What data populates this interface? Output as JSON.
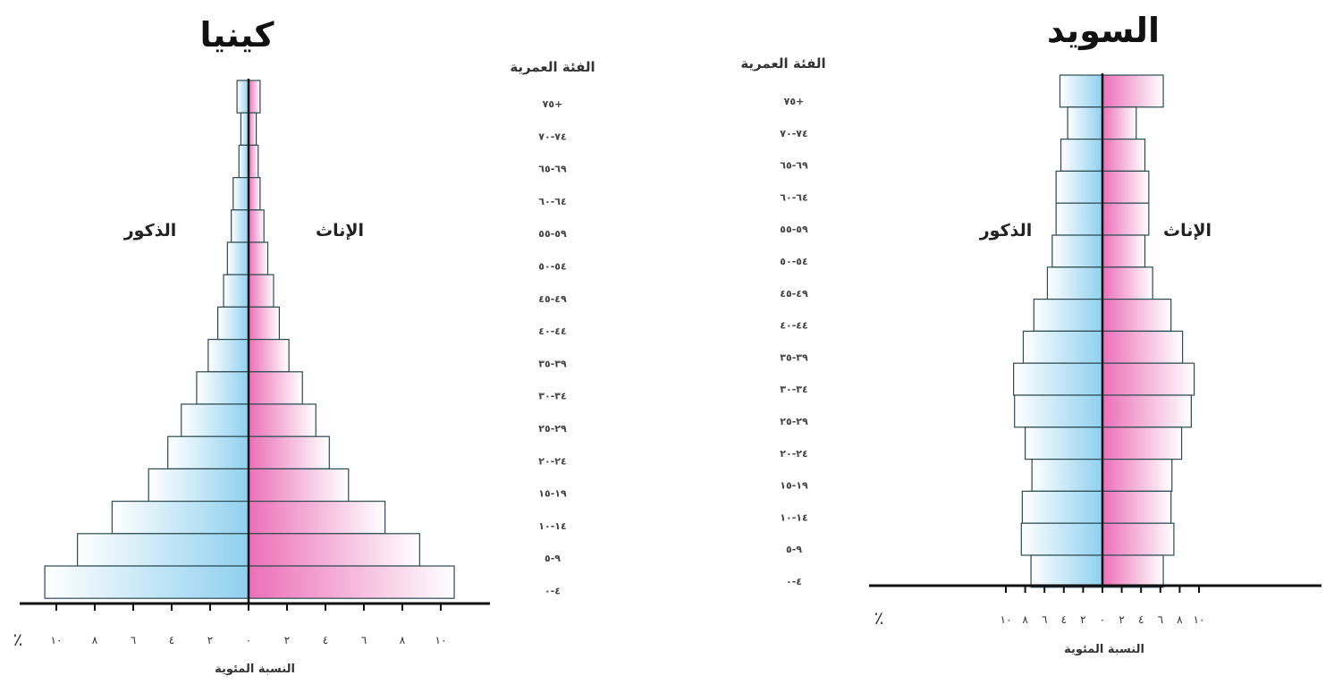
{
  "chart_data": [
    {
      "type": "bar",
      "subtype": "population-pyramid",
      "title": "كينيا",
      "male_label": "الذكور",
      "female_label": "الإناث",
      "xlabel": "النسبة المئوية",
      "unit_symbol": "٪",
      "xlim": [
        -10,
        10
      ],
      "x_ticks": [
        "١٠",
        "٨",
        "٦",
        "٤",
        "٢",
        "٠",
        "٢",
        "٤",
        "٦",
        "٨",
        "١٠"
      ],
      "age_header": "الفئة العمرية",
      "age_groups": [
        "٧٥+",
        "٧٤-٧٠",
        "٦٩-٦٥",
        "٦٤-٦٠",
        "٥٩-٥٥",
        "٥٤-٥٠",
        "٤٩-٤٥",
        "٤٤-٤٠",
        "٣٩-٣٥",
        "٣٤-٣٠",
        "٢٩-٢٥",
        "٢٤-٢٠",
        "١٩-١٥",
        "١٤-١٠",
        "٩-٥",
        "٤-٠"
      ],
      "series": [
        {
          "name": "الذكور",
          "values": [
            0.6,
            0.4,
            0.5,
            0.8,
            0.9,
            1.1,
            1.3,
            1.6,
            2.1,
            2.7,
            3.5,
            4.2,
            5.2,
            7.1,
            8.9,
            10.6
          ]
        },
        {
          "name": "الإناث",
          "values": [
            0.6,
            0.4,
            0.5,
            0.6,
            0.8,
            1.0,
            1.3,
            1.6,
            2.1,
            2.8,
            3.5,
            4.2,
            5.2,
            7.1,
            8.9,
            10.7
          ]
        }
      ]
    },
    {
      "type": "bar",
      "subtype": "population-pyramid",
      "title": "السويد",
      "male_label": "الذكور",
      "female_label": "الإناث",
      "xlabel": "النسبة المئوية",
      "unit_symbol": "٪",
      "xlim": [
        -10,
        10
      ],
      "x_ticks": [
        "١٠",
        "٨",
        "٦",
        "٤",
        "٢",
        "٠",
        "٢",
        "٤",
        "٦",
        "٨",
        "١٠"
      ],
      "age_header": "الفئة العمرية",
      "age_groups": [
        "٧٥+",
        "٧٤-٧٠",
        "٦٩-٦٥",
        "٦٤-٦٠",
        "٥٩-٥٥",
        "٥٤-٥٠",
        "٤٩-٤٥",
        "٤٤-٤٠",
        "٣٩-٣٥",
        "٣٤-٣٠",
        "٢٩-٢٥",
        "٢٤-٢٠",
        "١٩-١٥",
        "١٤-١٠",
        "٩-٥",
        "٤-٠"
      ],
      "series": [
        {
          "name": "الذكور",
          "values": [
            4.4,
            3.6,
            4.3,
            4.8,
            4.8,
            5.2,
            5.7,
            7.1,
            8.2,
            9.2,
            9.1,
            8.0,
            7.3,
            8.3,
            8.4,
            7.4
          ]
        },
        {
          "name": "الإناث",
          "values": [
            6.3,
            3.5,
            4.4,
            4.8,
            4.8,
            4.4,
            5.2,
            7.1,
            8.3,
            9.5,
            9.2,
            8.2,
            7.2,
            7.1,
            7.4,
            6.3
          ]
        }
      ]
    }
  ],
  "colors": {
    "male": "#8fd0ef",
    "female": "#ec6fb8",
    "outline": "#2e4a52",
    "axis": "#111111"
  }
}
